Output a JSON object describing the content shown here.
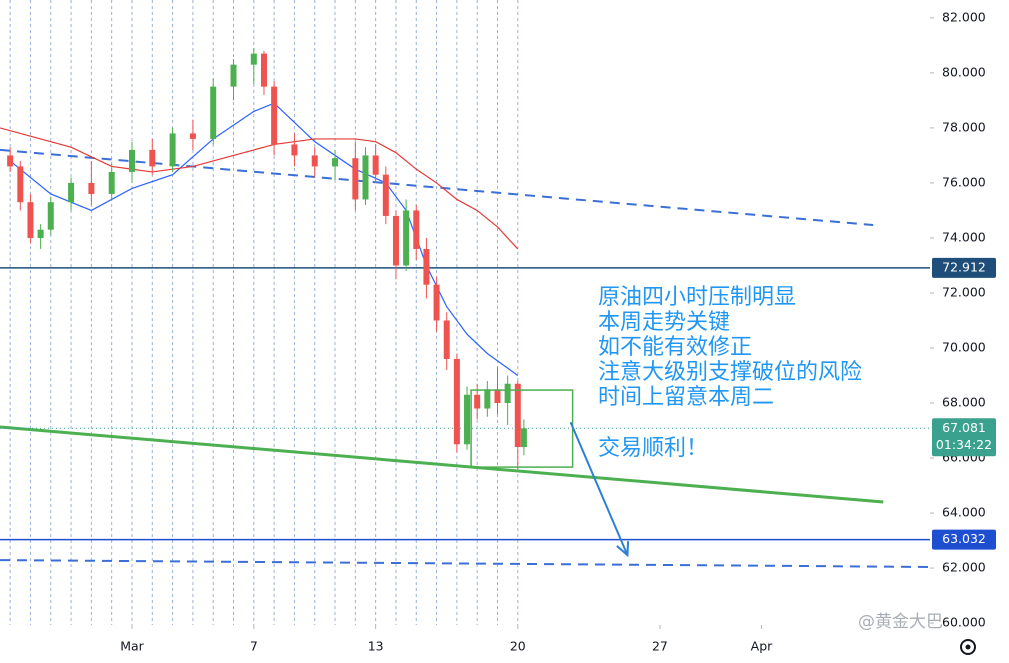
{
  "chart_data": {
    "type": "candlestick",
    "x": [
      -5,
      -4.5,
      -4,
      -3.5,
      -3,
      -2,
      -1,
      0,
      1,
      2,
      3,
      4,
      5,
      6,
      7,
      7.5,
      8,
      9,
      10,
      11,
      12,
      12.5,
      13,
      13.5,
      14,
      14.5,
      15,
      15.5,
      16,
      16.5,
      17,
      17.5,
      18,
      18.5,
      19,
      19.5,
      20,
      20.3
    ],
    "open": [
      77.0,
      76.6,
      75.3,
      74.0,
      74.3,
      75.3,
      76.0,
      75.6,
      76.4,
      77.2,
      76.6,
      77.8,
      77.6,
      79.5,
      80.3,
      80.7,
      79.5,
      77.4,
      77.0,
      76.6,
      76.9,
      75.4,
      77.0,
      76.3,
      74.8,
      73.0,
      75.0,
      73.6,
      72.3,
      71.0,
      69.6,
      66.5,
      68.3,
      67.8,
      68.5,
      68.0,
      68.7,
      66.4
    ],
    "high": [
      77.3,
      76.8,
      75.6,
      74.5,
      75.5,
      76.2,
      76.8,
      76.7,
      77.5,
      77.6,
      78.0,
      78.3,
      79.8,
      80.5,
      80.9,
      80.8,
      79.7,
      77.8,
      77.3,
      77.2,
      77.5,
      77.3,
      77.4,
      76.6,
      75.0,
      75.4,
      75.2,
      74.0,
      72.6,
      71.3,
      69.8,
      68.6,
      68.7,
      68.8,
      69.3,
      69.0,
      68.8,
      67.4
    ],
    "low": [
      76.4,
      75.0,
      73.8,
      73.6,
      74.1,
      75.0,
      75.2,
      75.4,
      76.0,
      76.3,
      76.4,
      77.2,
      77.4,
      79.0,
      79.6,
      79.2,
      77.0,
      76.6,
      76.2,
      76.1,
      75.0,
      75.2,
      76.0,
      74.5,
      72.5,
      72.8,
      73.2,
      71.8,
      70.6,
      69.2,
      66.2,
      66.3,
      67.4,
      67.5,
      67.6,
      67.2,
      65.6,
      66.1
    ],
    "close": [
      76.6,
      75.3,
      74.0,
      74.3,
      75.3,
      76.0,
      75.6,
      76.4,
      77.2,
      76.6,
      77.8,
      77.6,
      79.5,
      80.3,
      80.7,
      79.5,
      77.4,
      77.0,
      76.6,
      76.9,
      75.4,
      77.0,
      76.3,
      74.8,
      73.0,
      75.0,
      73.6,
      72.3,
      71.0,
      69.6,
      66.5,
      68.3,
      67.8,
      68.5,
      68.0,
      68.7,
      66.4,
      67.081
    ],
    "up_color": "#4caf50",
    "down_color": "#ef5350",
    "xlim": [
      -5.5,
      40.3
    ],
    "ylim": [
      59.93,
      82.65
    ],
    "xticks": [
      {
        "value": 1,
        "label": "Mar"
      },
      7,
      13,
      20,
      27,
      {
        "value": 32,
        "label": "Apr"
      }
    ],
    "yticks": [
      {
        "value": 60,
        "label": "60.000"
      },
      {
        "value": 62,
        "label": "62.000"
      },
      {
        "value": 64,
        "label": "64.000"
      },
      {
        "value": 66,
        "label": "66.000"
      },
      {
        "value": 68,
        "label": "68.000"
      },
      {
        "value": 70,
        "label": "70.000"
      },
      {
        "value": 72,
        "label": "72.000"
      },
      {
        "value": 74,
        "label": "74.000"
      },
      {
        "value": 76,
        "label": "76.000"
      },
      {
        "value": 78,
        "label": "78.000"
      },
      {
        "value": 80,
        "label": "80.000"
      },
      {
        "value": 82,
        "label": "82.000"
      }
    ],
    "ma": [
      {
        "color": "#2962ff",
        "x": [
          -5,
          -3,
          -1,
          1,
          3,
          5,
          7,
          8,
          10,
          12,
          13.5,
          14.5,
          15.5,
          16.5,
          17.5,
          18.5,
          20
        ],
        "values": [
          76.8,
          75.6,
          75.0,
          75.8,
          76.3,
          77.6,
          78.6,
          78.9,
          77.5,
          76.5,
          76.0,
          75.0,
          73.0,
          71.5,
          70.5,
          69.8,
          69.0
        ]
      },
      {
        "color": "#e53935",
        "x": [
          -5.5,
          -2,
          0,
          2,
          4,
          6,
          8,
          10,
          12,
          13,
          14,
          15,
          16,
          17,
          18,
          19,
          20
        ],
        "values": [
          78.0,
          77.3,
          76.6,
          76.4,
          76.6,
          77.0,
          77.4,
          77.6,
          77.6,
          77.5,
          77.1,
          76.5,
          76.0,
          75.4,
          75.0,
          74.4,
          73.6
        ]
      }
    ],
    "trendlines": [
      {
        "color": "#3a6fd8",
        "dashed": true,
        "x": [
          -5.5,
          37.5
        ],
        "values": [
          77.2,
          74.47
        ]
      },
      {
        "color": "#4caf50",
        "dashed": false,
        "x": [
          -5.5,
          38
        ],
        "values": [
          67.13,
          64.4
        ]
      },
      {
        "color": "#3a6fd8",
        "dashed": true,
        "x": [
          -5.5,
          40.3
        ],
        "values": [
          62.29,
          62.04
        ]
      }
    ],
    "levels": [
      {
        "value": 72.912,
        "color": "#1e4e79"
      },
      {
        "value": 63.032,
        "color": "#1f4fd1"
      }
    ],
    "box": {
      "color": "#4caf50",
      "x": [
        17.7,
        22.7
      ],
      "values": [
        68.47,
        65.67
      ]
    },
    "arrow": {
      "color": "#2d7fd8",
      "x": [
        22.6,
        25.4
      ],
      "values": [
        67.3,
        62.47
      ]
    },
    "last_price": {
      "value": 67.081,
      "countdown": "01:34:22",
      "color": "#3aa18f"
    },
    "annotation": {
      "color": "#2196f3",
      "lines": [
        "原油四小时压制明显",
        "本周走势关键",
        "如不能有效修正",
        "注意大级别支撑破位的风险",
        "时间上留意本周二"
      ],
      "footer": "交易顺利！"
    },
    "watermark": "@黄金大巴"
  }
}
